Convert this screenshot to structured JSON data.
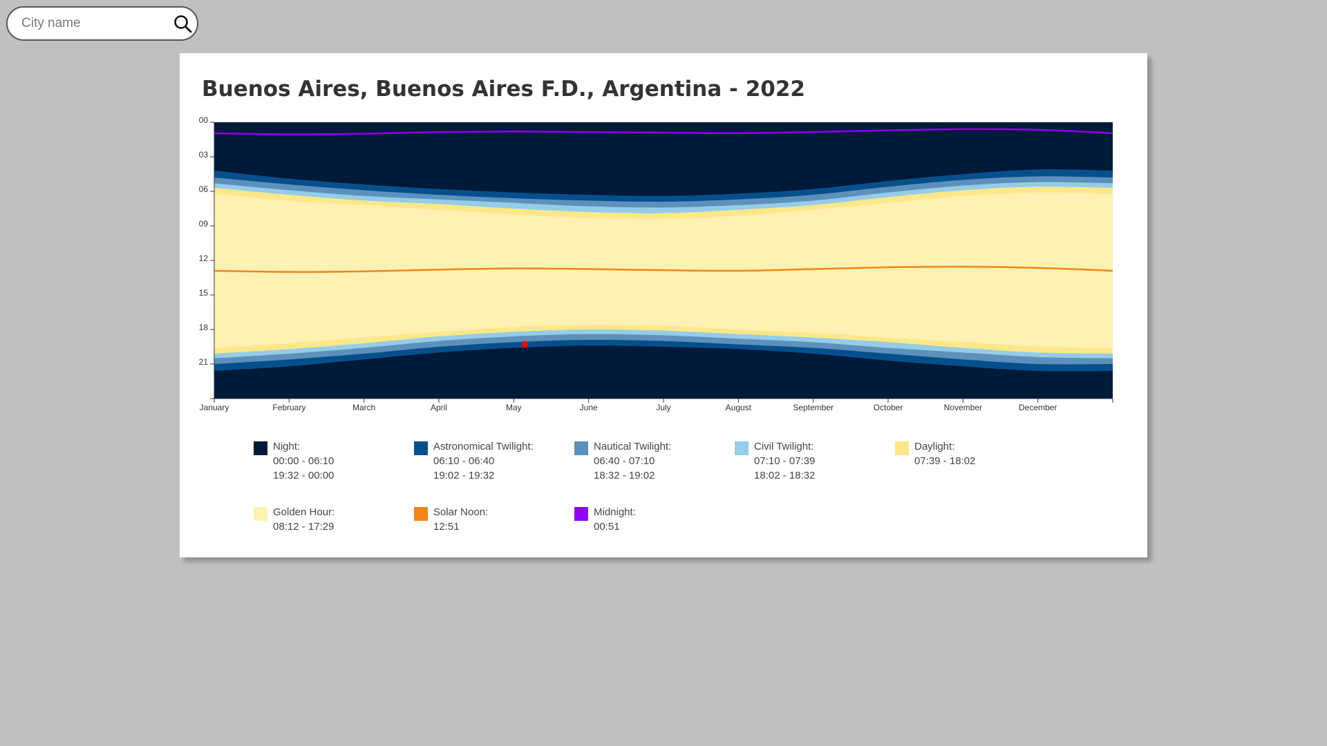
{
  "search": {
    "placeholder": "City name",
    "icon": "search-icon"
  },
  "title": "Buenos Aires, Buenos Aires F.D., Argentina - 2022",
  "colors": {
    "night": "#001a3a",
    "astronomical": "#064f8d",
    "nautical": "#5d90bb",
    "civil": "#93cde8",
    "daylight": "#fde789",
    "golden": "#fff0b3",
    "solar_noon": "#f28518",
    "midnight": "#8f00f5",
    "marker": "#e01010"
  },
  "legend": [
    {
      "key": "night",
      "label": "Night:",
      "lines": [
        "00:00 - 06:10",
        "19:32 - 00:00"
      ]
    },
    {
      "key": "astronomical",
      "label": "Astronomical Twilight:",
      "lines": [
        "06:10 - 06:40",
        "19:02 - 19:32"
      ]
    },
    {
      "key": "nautical",
      "label": "Nautical Twilight:",
      "lines": [
        "06:40 - 07:10",
        "18:32 - 19:02"
      ]
    },
    {
      "key": "civil",
      "label": "Civil Twilight:",
      "lines": [
        "07:10 - 07:39",
        "18:02 - 18:32"
      ]
    },
    {
      "key": "daylight",
      "label": "Daylight:",
      "lines": [
        "07:39 - 18:02"
      ]
    },
    {
      "key": "golden",
      "label": "Golden Hour:",
      "lines": [
        "08:12 - 17:29"
      ]
    },
    {
      "key": "solar_noon",
      "label": "Solar Noon:",
      "lines": [
        "12:51"
      ]
    },
    {
      "key": "midnight",
      "label": "Midnight:",
      "lines": [
        "00:51"
      ]
    }
  ],
  "chart_data": {
    "type": "area",
    "x_categories": [
      "January",
      "February",
      "March",
      "April",
      "May",
      "June",
      "July",
      "August",
      "September",
      "October",
      "November",
      "December"
    ],
    "y_ticks": [
      "00",
      "03",
      "06",
      "09",
      "12",
      "15",
      "18",
      "21"
    ],
    "ylim": [
      0,
      24
    ],
    "x_unit": "month",
    "months_x": [
      0,
      1,
      2,
      3,
      4,
      5,
      6,
      7,
      8,
      9,
      10,
      11,
      12
    ],
    "series": {
      "astronomical_dawn": [
        4.2,
        4.9,
        5.4,
        5.8,
        6.1,
        6.3,
        6.4,
        6.2,
        5.8,
        5.1,
        4.5,
        4.1,
        4.2
      ],
      "nautical_dawn": [
        4.8,
        5.4,
        5.9,
        6.3,
        6.6,
        6.8,
        6.9,
        6.7,
        6.3,
        5.6,
        5.0,
        4.7,
        4.8
      ],
      "civil_dawn": [
        5.3,
        5.9,
        6.4,
        6.7,
        7.0,
        7.3,
        7.4,
        7.2,
        6.8,
        6.1,
        5.5,
        5.2,
        5.3
      ],
      "sunrise": [
        5.7,
        6.3,
        6.8,
        7.1,
        7.5,
        7.8,
        7.9,
        7.6,
        7.2,
        6.5,
        5.9,
        5.6,
        5.7
      ],
      "golden_start": [
        6.2,
        6.8,
        7.2,
        7.6,
        8.0,
        8.3,
        8.4,
        8.1,
        7.6,
        7.0,
        6.4,
        6.1,
        6.2
      ],
      "solar_noon": [
        12.9,
        13.0,
        12.95,
        12.8,
        12.7,
        12.75,
        12.85,
        12.9,
        12.75,
        12.6,
        12.55,
        12.65,
        12.9
      ],
      "golden_end": [
        19.6,
        19.2,
        18.7,
        18.2,
        17.8,
        17.6,
        17.7,
        18.0,
        18.3,
        18.7,
        19.1,
        19.5,
        19.6
      ],
      "sunset": [
        20.1,
        19.7,
        19.2,
        18.6,
        18.2,
        18.0,
        18.1,
        18.4,
        18.7,
        19.1,
        19.6,
        20.0,
        20.1
      ],
      "civil_dusk": [
        20.5,
        20.1,
        19.6,
        19.0,
        18.6,
        18.4,
        18.5,
        18.8,
        19.1,
        19.6,
        20.0,
        20.4,
        20.5
      ],
      "nautical_dusk": [
        21.0,
        20.6,
        20.1,
        19.5,
        19.1,
        18.9,
        19.0,
        19.3,
        19.6,
        20.1,
        20.6,
        21.0,
        21.0
      ],
      "astronomical_dusk": [
        21.6,
        21.2,
        20.6,
        20.0,
        19.6,
        19.4,
        19.5,
        19.7,
        20.1,
        20.7,
        21.2,
        21.6,
        21.6
      ],
      "midnight": [
        0.95,
        1.05,
        1.0,
        0.85,
        0.8,
        0.85,
        0.9,
        0.95,
        0.85,
        0.7,
        0.6,
        0.65,
        0.95
      ]
    },
    "marker": {
      "month": 4.15,
      "hour": 19.3
    }
  }
}
